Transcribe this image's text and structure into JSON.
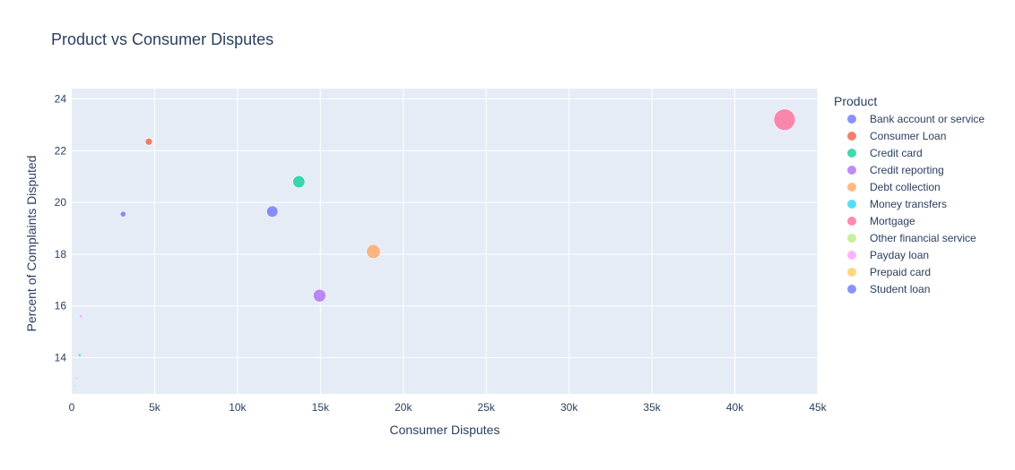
{
  "chart_data": {
    "type": "scatter",
    "title": "Product vs Consumer Disputes",
    "xlabel": "Consumer Disputes",
    "ylabel": "Percent of Complaints Disputed",
    "xlim": [
      0,
      45000
    ],
    "ylim": [
      12.6,
      24.4
    ],
    "x_ticks": [
      0,
      5000,
      10000,
      15000,
      20000,
      25000,
      30000,
      35000,
      40000,
      45000
    ],
    "x_tick_labels": [
      "0",
      "5k",
      "10k",
      "15k",
      "20k",
      "25k",
      "30k",
      "35k",
      "40k",
      "45k"
    ],
    "y_ticks": [
      14,
      16,
      18,
      20,
      22,
      24
    ],
    "y_tick_labels": [
      "14",
      "16",
      "18",
      "20",
      "22",
      "24"
    ],
    "grid": true,
    "legend_title": "Product",
    "legend_position": "right",
    "series": [
      {
        "name": "Bank account or service",
        "x": 12100,
        "y": 19.65,
        "color": "#636efa"
      },
      {
        "name": "Consumer Loan",
        "x": 4650,
        "y": 22.35,
        "color": "#EF553B"
      },
      {
        "name": "Credit card",
        "x": 13700,
        "y": 20.8,
        "color": "#00cc96"
      },
      {
        "name": "Credit reporting",
        "x": 14950,
        "y": 16.4,
        "color": "#ab63fa"
      },
      {
        "name": "Debt collection",
        "x": 18200,
        "y": 18.1,
        "color": "#FFA15A"
      },
      {
        "name": "Money transfers",
        "x": 480,
        "y": 14.1,
        "color": "#19d3f3"
      },
      {
        "name": "Mortgage",
        "x": 43000,
        "y": 23.2,
        "color": "#FF6692"
      },
      {
        "name": "Other financial service",
        "x": 200,
        "y": 12.9,
        "color": "#B6E880"
      },
      {
        "name": "Payday loan",
        "x": 550,
        "y": 15.6,
        "color": "#FF97FF"
      },
      {
        "name": "Prepaid card",
        "x": 300,
        "y": 13.2,
        "color": "#FECB52"
      },
      {
        "name": "Student loan",
        "x": 3100,
        "y": 19.55,
        "color": "#636efa"
      }
    ]
  }
}
